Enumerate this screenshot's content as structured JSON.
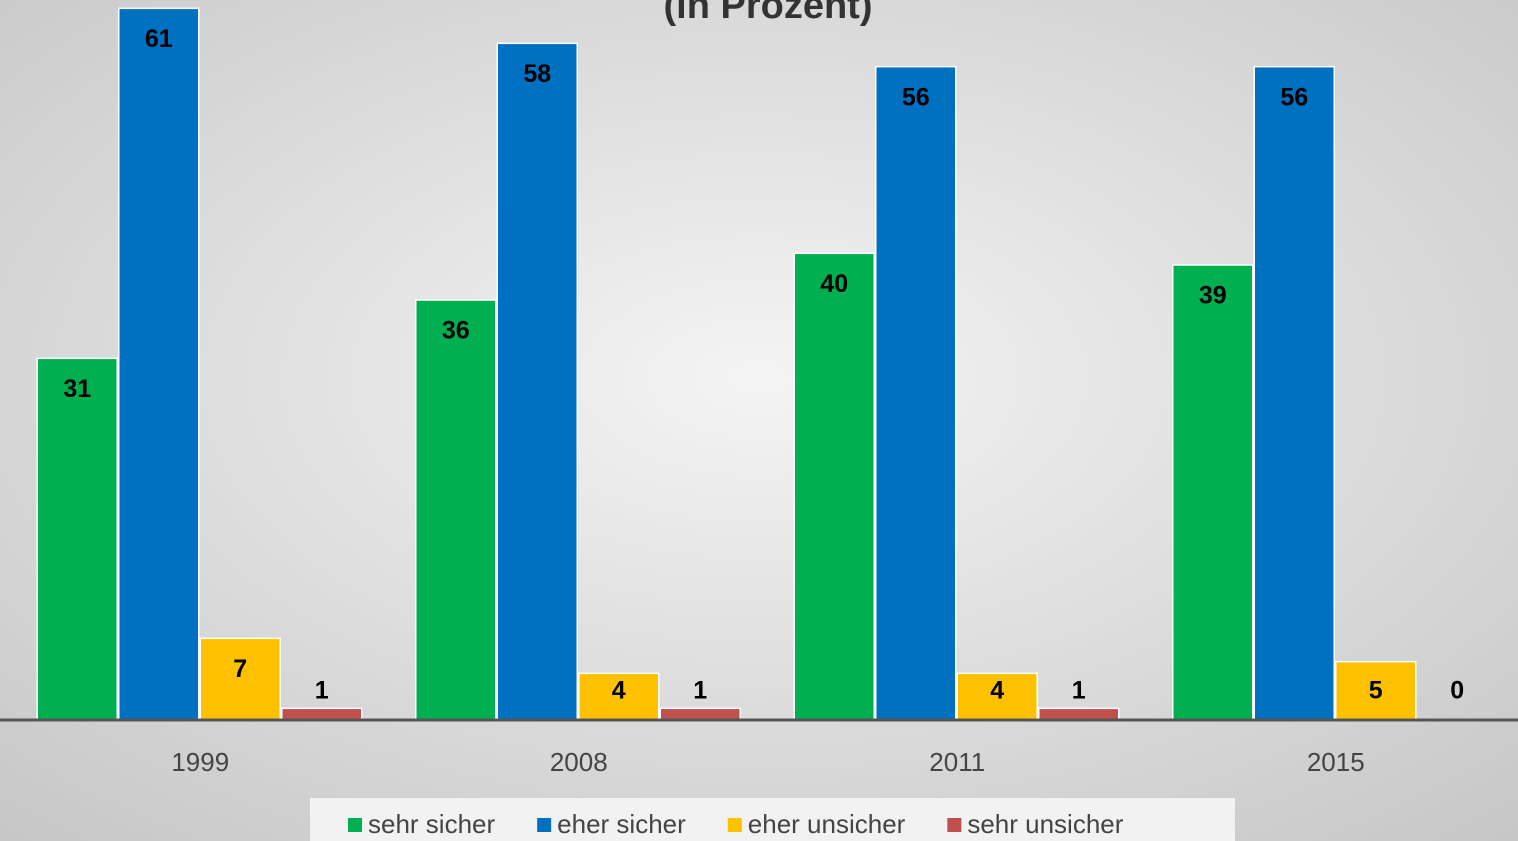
{
  "chart_data": {
    "type": "bar",
    "title": "(in Prozent)",
    "categories": [
      "1999",
      "2008",
      "2011",
      "2015"
    ],
    "series": [
      {
        "name": "sehr sicher",
        "color": "#00b050",
        "values": [
          31,
          36,
          40,
          39
        ]
      },
      {
        "name": "eher sicher",
        "color": "#0070c0",
        "values": [
          61,
          58,
          56,
          56
        ]
      },
      {
        "name": "eher unsicher",
        "color": "#ffc000",
        "values": [
          7,
          4,
          4,
          5
        ]
      },
      {
        "name": "sehr unsicher",
        "color": "#c0504d",
        "values": [
          1,
          1,
          1,
          0
        ]
      }
    ],
    "ylim": [
      0,
      60
    ],
    "yticks": [
      0,
      10,
      20,
      30,
      40,
      50,
      60
    ],
    "grid": true,
    "legend": "bottom"
  }
}
